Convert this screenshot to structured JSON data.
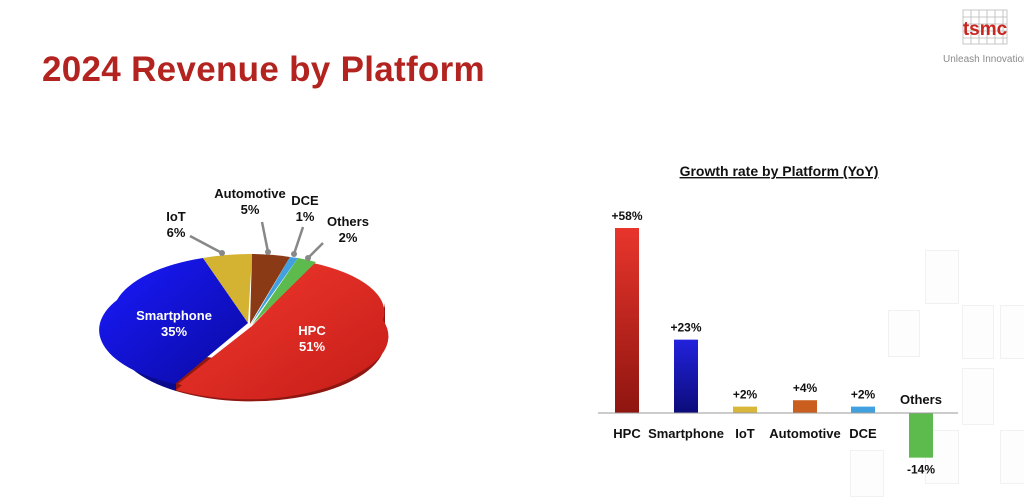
{
  "slide": {
    "title": "2024 Revenue by Platform",
    "brand": {
      "logo_text": "tsmc",
      "tagline": "Unleash Innovation"
    }
  },
  "colors": {
    "title": "#b3231f",
    "hpc": "#e0302a",
    "smartphone": "#1515c8",
    "iot": "#d9b73b",
    "automotive": "#c95e1e",
    "dce": "#41a0e0",
    "others": "#5dbb4e"
  },
  "chart_data": [
    {
      "type": "pie",
      "title": "",
      "slices": [
        {
          "label": "HPC",
          "value": 51,
          "value_label": "51%",
          "color": "#e0302a"
        },
        {
          "label": "Smartphone",
          "value": 35,
          "value_label": "35%",
          "color": "#1515c8"
        },
        {
          "label": "IoT",
          "value": 6,
          "value_label": "6%",
          "color": "#d9b73b"
        },
        {
          "label": "Automotive",
          "value": 5,
          "value_label": "5%",
          "color": "#8a3a14"
        },
        {
          "label": "DCE",
          "value": 1,
          "value_label": "1%",
          "color": "#41a0e0"
        },
        {
          "label": "Others",
          "value": 2,
          "value_label": "2%",
          "color": "#5dbb4e"
        }
      ],
      "style": "3d-exploded"
    },
    {
      "type": "bar",
      "title": "Growth rate by Platform (YoY)",
      "categories": [
        "HPC",
        "Smartphone",
        "IoT",
        "Automotive",
        "DCE",
        "Others"
      ],
      "values": [
        58,
        23,
        2,
        4,
        2,
        -14
      ],
      "value_labels": [
        "+58%",
        "+23%",
        "+2%",
        "+4%",
        "+2%",
        "-14%"
      ],
      "colors": [
        "#e0302a",
        "#1515c8",
        "#d9b73b",
        "#c95e1e",
        "#41a0e0",
        "#5dbb4e"
      ],
      "ylim": [
        -14,
        58
      ],
      "grid": false,
      "legend": "none"
    }
  ]
}
